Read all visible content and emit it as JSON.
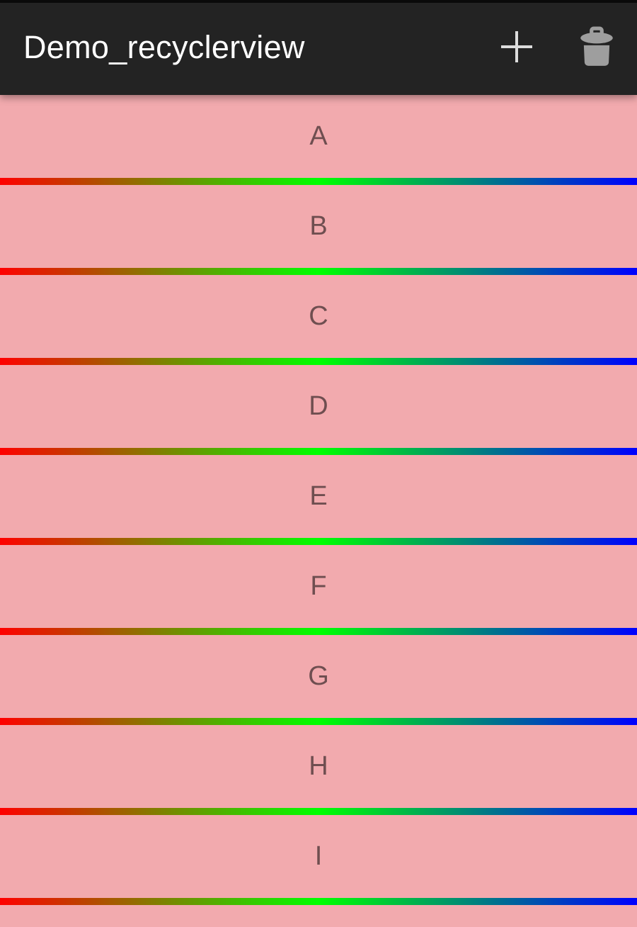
{
  "app_bar": {
    "title": "Demo_recyclerview",
    "actions": [
      {
        "name": "add",
        "icon": "plus-icon"
      },
      {
        "name": "delete",
        "icon": "trash-icon"
      }
    ]
  },
  "list": {
    "items": [
      "A",
      "B",
      "C",
      "D",
      "E",
      "F",
      "G",
      "H",
      "I"
    ],
    "partial_item_visible": true
  },
  "colors": {
    "app_bar_bg": "#232323",
    "status_strip": "#0a0a0a",
    "title_text": "#ffffff",
    "item_bg": "#f2aaae",
    "item_text": "rgba(0,0,0,0.54)",
    "icon_plus": "#dcdcdc",
    "icon_trash": "#9e9e9e",
    "divider_gradient": [
      "#ff0000",
      "#00ff00",
      "#0000ff"
    ]
  }
}
